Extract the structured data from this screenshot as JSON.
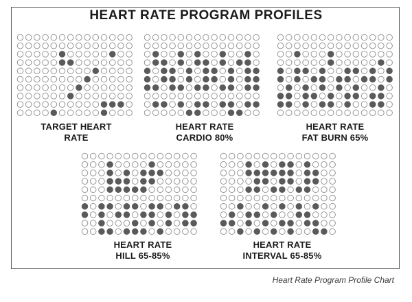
{
  "title": "HEART RATE PROGRAM PROFILES",
  "caption": "Heart Rate Program Profile Chart",
  "colors": {
    "filled": "#5a5a5a",
    "empty": "#ffffff",
    "ring": "#8c8c8c",
    "frame": "#5a5a5a"
  },
  "grid": {
    "rows": 10,
    "cols": 14
  },
  "profiles": [
    {
      "key": "target",
      "label_lines": [
        "TARGET HEART",
        "RATE"
      ],
      "pattern": [
        "..............",
        "..............",
        ".....#.....#..",
        ".....##.......",
        ".........#....",
        "........#.....",
        ".......#......",
        "......#.......",
        "..........###.",
        "....#.....#..."
      ]
    },
    {
      "key": "cardio",
      "label_lines": [
        "HEART RATE",
        "CARDIO 80%"
      ],
      "pattern": [
        "..............",
        "..............",
        ".#..#.#..#..#.",
        ".##.#.##.#.##.",
        "#.##.#.##.#.##",
        "#.##.#.##.#.##",
        "##.##.##.##.##",
        "..............",
        ".##.#.##.##.##",
        ".....##...##.."
      ]
    },
    {
      "key": "fatburn",
      "label_lines": [
        "HEART RATE",
        "FAT BURN 65%"
      ],
      "pattern": [
        "..............",
        "..............",
        "..#...#.......",
        "......#.....#.",
        "#.##.#..##.#.#",
        "#.#.##.##.##.#",
        ".#.#.#.#.#..#.",
        "##.##.#.##.##.",
        "##.#.##.#..##.",
        ".............."
      ]
    },
    {
      "key": "hill",
      "label_lines": [
        "HEART RATE",
        "HILL 65-85%"
      ],
      "pattern": [
        "..............",
        "...#....#.....",
        "...#.#.###....",
        "...###.##.....",
        "...#####......",
        "..............",
        "#.##.##.##.##.",
        "#.#.##.##.#.##",
        "..#...#.#.#.##",
        "..##.###.#...."
      ]
    },
    {
      "key": "interval",
      "label_lines": [
        "HEART RATE",
        "INTERVAL 65-85%"
      ],
      "pattern": [
        "..............",
        "...#.#.##.#...",
        "...######.##..",
        "....##.##.##..",
        "...##.##.##...",
        "..............",
        "..#..#.#.#.#..",
        ".#.##.#..##...",
        "##.#.#.##.##..",
        "..#.#.#.#..##."
      ]
    }
  ]
}
